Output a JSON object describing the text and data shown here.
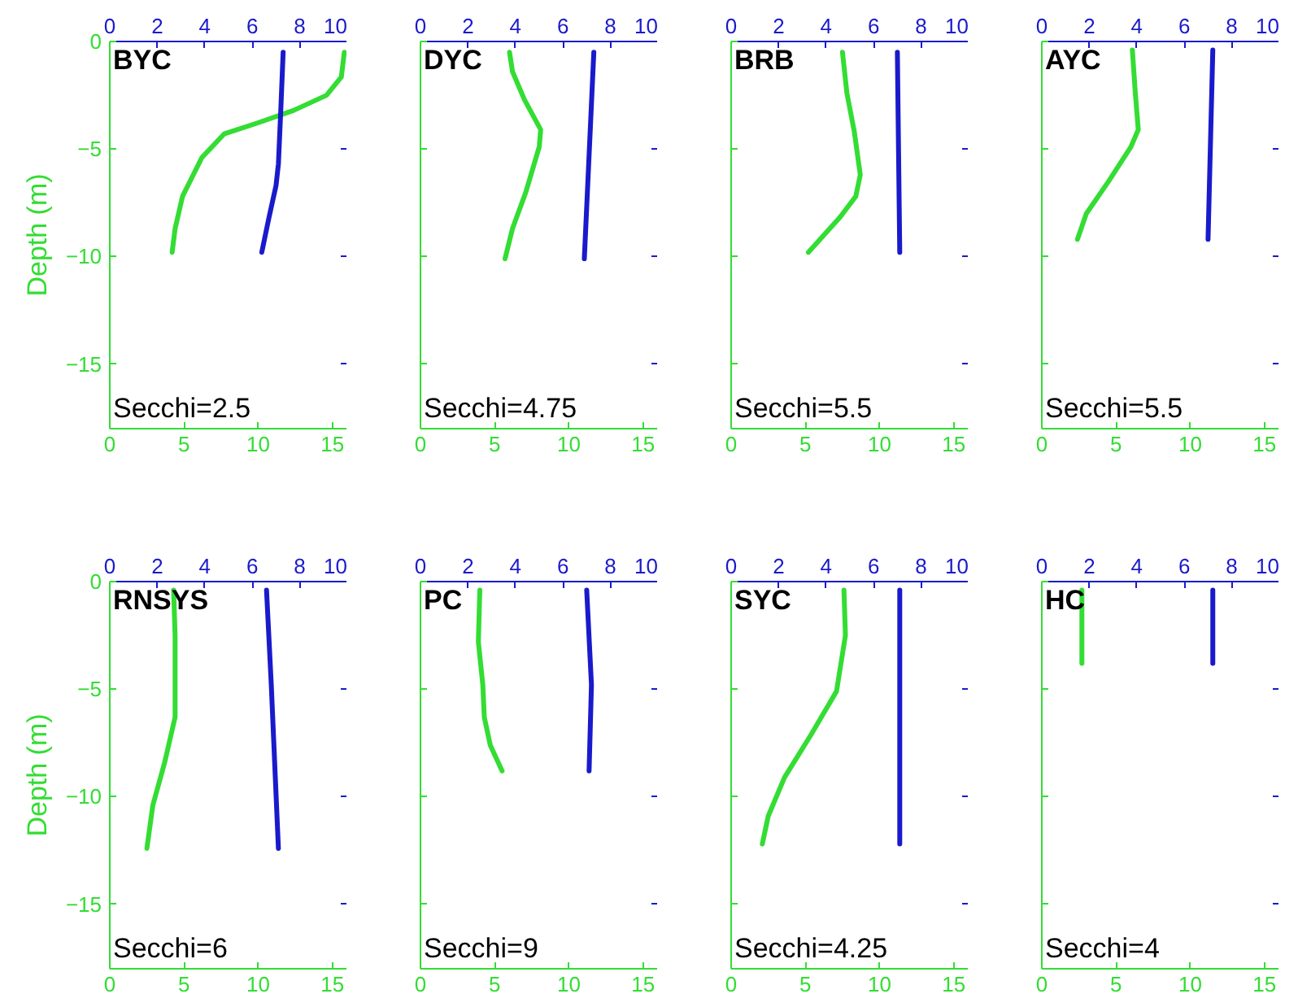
{
  "chart_data": [
    {
      "type": "line",
      "title": "BYC",
      "annotations": [
        "Secchi=2.5"
      ],
      "ylabel": "Depth (m)",
      "xlim": [
        0,
        16
      ],
      "xticks": [
        0,
        5,
        10,
        15
      ],
      "x2lim": [
        0,
        10
      ],
      "x2ticks": [
        0,
        2,
        4,
        6,
        8,
        10
      ],
      "ylim": [
        -18,
        0
      ],
      "yticks": [
        0,
        -5,
        -10,
        -15
      ],
      "series": [
        {
          "color": "#33dd33",
          "x": [
            15.8,
            15.6,
            14.6,
            12.4,
            9.9,
            7.7,
            6.2,
            4.9,
            4.4,
            4.2
          ],
          "values": [
            -0.5,
            -1.65,
            -2.5,
            -3.2,
            -3.8,
            -4.3,
            -5.4,
            -7.2,
            -8.7,
            -9.8
          ]
        },
        {
          "color": "#1a1acc",
          "axis": "x2",
          "x": [
            7.3,
            7.2,
            7.1,
            7.0,
            6.7,
            6.4
          ],
          "values": [
            -0.5,
            -3.2,
            -5.7,
            -6.7,
            -8.2,
            -9.8
          ]
        }
      ]
    },
    {
      "type": "line",
      "title": "DYC",
      "annotations": [
        "Secchi=4.75"
      ],
      "tick_labels": "x",
      "xlim": [
        0,
        16
      ],
      "xticks": [
        0,
        5,
        10,
        15
      ],
      "x2lim": [
        0,
        10
      ],
      "x2ticks": [
        0,
        2,
        4,
        6,
        8,
        10
      ],
      "ylim": [
        -18,
        0
      ],
      "yticks": [
        0,
        -5,
        -10,
        -15
      ],
      "series": [
        {
          "color": "#33dd33",
          "x": [
            6.0,
            6.2,
            7.0,
            8.1,
            8.0,
            7.1,
            6.2,
            5.7
          ],
          "values": [
            -0.5,
            -1.4,
            -2.7,
            -4.1,
            -4.9,
            -7.0,
            -8.7,
            -10.1
          ]
        },
        {
          "color": "#1a1acc",
          "axis": "x2",
          "x": [
            7.3,
            6.9
          ],
          "values": [
            -0.5,
            -10.1
          ]
        }
      ]
    },
    {
      "type": "line",
      "title": "BRB",
      "annotations": [
        "Secchi=5.5"
      ],
      "tick_labels": "x",
      "xlim": [
        0,
        16
      ],
      "xticks": [
        0,
        5,
        10,
        15
      ],
      "x2lim": [
        0,
        10
      ],
      "x2ticks": [
        0,
        2,
        4,
        6,
        8,
        10
      ],
      "ylim": [
        -18,
        0
      ],
      "yticks": [
        0,
        -5,
        -10,
        -15
      ],
      "series": [
        {
          "color": "#33dd33",
          "x": [
            7.5,
            7.8,
            8.3,
            8.7,
            8.4,
            7.3,
            5.2
          ],
          "values": [
            -0.5,
            -2.4,
            -4.2,
            -6.2,
            -7.2,
            -8.2,
            -9.8
          ]
        },
        {
          "color": "#1a1acc",
          "axis": "x2",
          "x": [
            7.0,
            7.1
          ],
          "values": [
            -0.5,
            -9.8
          ]
        }
      ]
    },
    {
      "type": "line",
      "title": "AYC",
      "annotations": [
        "Secchi=5.5"
      ],
      "tick_labels": "x",
      "xlim": [
        0,
        16
      ],
      "xticks": [
        0,
        5,
        10,
        15
      ],
      "x2lim": [
        0,
        10
      ],
      "x2ticks": [
        0,
        2,
        4,
        6,
        8,
        10
      ],
      "ylim": [
        -18,
        0
      ],
      "yticks": [
        0,
        -5,
        -10,
        -15
      ],
      "series": [
        {
          "color": "#33dd33",
          "x": [
            6.1,
            6.3,
            6.5,
            6.0,
            4.5,
            3.0,
            2.4
          ],
          "values": [
            -0.4,
            -2.4,
            -4.1,
            -4.9,
            -6.5,
            -8.0,
            -9.2
          ]
        },
        {
          "color": "#1a1acc",
          "axis": "x2",
          "x": [
            7.2,
            7.0
          ],
          "values": [
            -0.4,
            -9.2
          ]
        }
      ]
    },
    {
      "type": "line",
      "title": "RNSYS",
      "annotations": [
        "Secchi=6"
      ],
      "ylabel": "Depth (m)",
      "xlim": [
        0,
        16
      ],
      "xticks": [
        0,
        5,
        10,
        15
      ],
      "x2lim": [
        0,
        10
      ],
      "x2ticks": [
        0,
        2,
        4,
        6,
        8,
        10
      ],
      "ylim": [
        -18,
        0
      ],
      "yticks": [
        0,
        -5,
        -10,
        -15
      ],
      "series": [
        {
          "color": "#33dd33",
          "x": [
            4.3,
            4.4,
            4.4,
            3.7,
            2.9,
            2.5
          ],
          "values": [
            -0.4,
            -2.5,
            -6.3,
            -8.4,
            -10.4,
            -12.4
          ]
        },
        {
          "color": "#1a1acc",
          "axis": "x2",
          "x": [
            6.6,
            6.8,
            7.1
          ],
          "values": [
            -0.4,
            -4.8,
            -12.4
          ]
        }
      ]
    },
    {
      "type": "line",
      "title": "PC",
      "annotations": [
        "Secchi=9"
      ],
      "tick_labels": "x",
      "xlim": [
        0,
        16
      ],
      "xticks": [
        0,
        5,
        10,
        15
      ],
      "x2lim": [
        0,
        10
      ],
      "x2ticks": [
        0,
        2,
        4,
        6,
        8,
        10
      ],
      "ylim": [
        -18,
        0
      ],
      "yticks": [
        0,
        -5,
        -10,
        -15
      ],
      "series": [
        {
          "color": "#33dd33",
          "x": [
            4.0,
            3.9,
            4.2,
            4.3,
            4.7,
            5.5
          ],
          "values": [
            -0.4,
            -2.8,
            -4.8,
            -6.3,
            -7.6,
            -8.8
          ]
        },
        {
          "color": "#1a1acc",
          "axis": "x2",
          "x": [
            7.0,
            7.2,
            7.1
          ],
          "values": [
            -0.4,
            -4.8,
            -8.8
          ]
        }
      ]
    },
    {
      "type": "line",
      "title": "SYC",
      "annotations": [
        "Secchi=4.25"
      ],
      "tick_labels": "x",
      "xlim": [
        0,
        16
      ],
      "xticks": [
        0,
        5,
        10,
        15
      ],
      "x2lim": [
        0,
        10
      ],
      "x2ticks": [
        0,
        2,
        4,
        6,
        8,
        10
      ],
      "ylim": [
        -18,
        0
      ],
      "yticks": [
        0,
        -5,
        -10,
        -15
      ],
      "series": [
        {
          "color": "#33dd33",
          "x": [
            7.6,
            7.7,
            7.1,
            5.4,
            3.6,
            2.5,
            2.1
          ],
          "values": [
            -0.4,
            -2.5,
            -5.1,
            -7.1,
            -9.1,
            -10.9,
            -12.2
          ]
        },
        {
          "color": "#1a1acc",
          "axis": "x2",
          "x": [
            7.1,
            7.1
          ],
          "values": [
            -0.4,
            -12.2
          ]
        }
      ]
    },
    {
      "type": "line",
      "title": "HC",
      "annotations": [
        "Secchi=4"
      ],
      "tick_labels": "x",
      "xlim": [
        0,
        16
      ],
      "xticks": [
        0,
        5,
        10,
        15
      ],
      "x2lim": [
        0,
        10
      ],
      "x2ticks": [
        0,
        2,
        4,
        6,
        8,
        10
      ],
      "ylim": [
        -18,
        0
      ],
      "yticks": [
        0,
        -5,
        -10,
        -15
      ],
      "series": [
        {
          "color": "#33dd33",
          "x": [
            2.7,
            2.7
          ],
          "values": [
            -0.4,
            -3.8
          ]
        },
        {
          "color": "#1a1acc",
          "axis": "x2",
          "x": [
            7.2,
            7.2
          ],
          "values": [
            -0.4,
            -3.8
          ]
        }
      ]
    }
  ]
}
